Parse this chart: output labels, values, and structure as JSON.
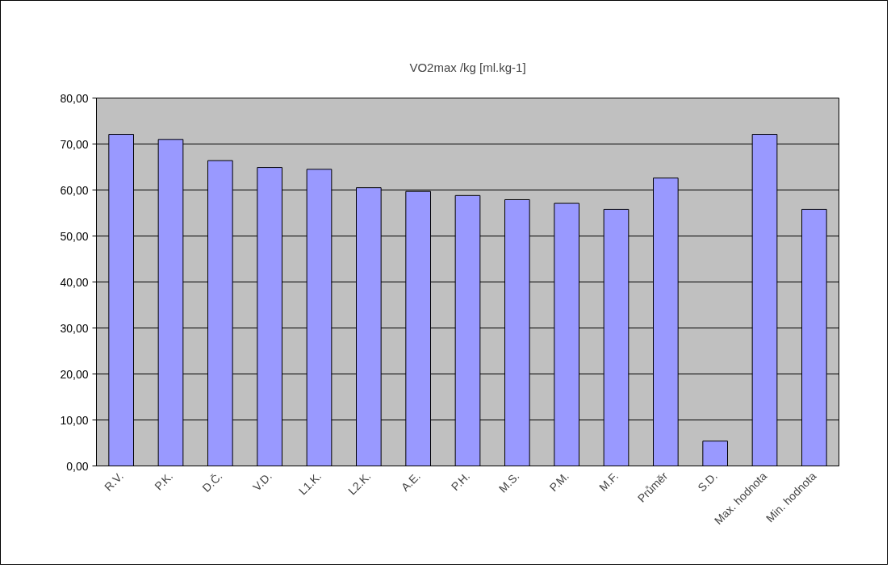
{
  "chart_data": {
    "type": "bar",
    "title": "VO2max /kg [ml.kg-1]",
    "categories": [
      "R.V.",
      "P.K.",
      "D.Č.",
      "V.D.",
      "L1.K.",
      "L2.K.",
      "A.E.",
      "P.H.",
      "M.S.",
      "P.M.",
      "M.F.",
      "Průměr",
      "S.D.",
      "Max. hodnota",
      "Min. hodnota"
    ],
    "values": [
      72.1,
      71.0,
      66.4,
      64.9,
      64.5,
      60.5,
      59.7,
      58.8,
      57.9,
      57.1,
      55.8,
      62.6,
      5.4,
      72.1,
      55.8
    ],
    "color": "#9999ff",
    "ylim": [
      0,
      80
    ],
    "yticks": [
      {
        "value": 0,
        "label": "0,00"
      },
      {
        "value": 10,
        "label": "10,00"
      },
      {
        "value": 20,
        "label": "20,00"
      },
      {
        "value": 30,
        "label": "30,00"
      },
      {
        "value": 40,
        "label": "40,00"
      },
      {
        "value": 50,
        "label": "50,00"
      },
      {
        "value": 60,
        "label": "60,00"
      },
      {
        "value": 70,
        "label": "70,00"
      },
      {
        "value": 80,
        "label": "80,00"
      }
    ],
    "grid": "y"
  }
}
